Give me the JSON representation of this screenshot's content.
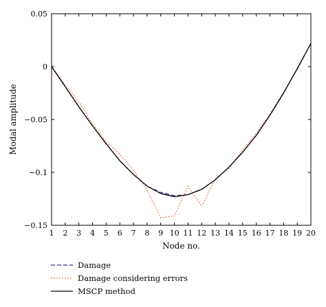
{
  "chart_data": {
    "type": "line",
    "title": "",
    "xlabel": "Node no.",
    "ylabel": "Modal amplitude",
    "xlim": [
      1,
      20
    ],
    "ylim": [
      -0.15,
      0.05
    ],
    "x": [
      1,
      2,
      3,
      4,
      5,
      6,
      7,
      8,
      9,
      10,
      11,
      12,
      13,
      14,
      15,
      16,
      17,
      18,
      19,
      20
    ],
    "x_ticks": [
      1,
      2,
      3,
      4,
      5,
      6,
      7,
      8,
      9,
      10,
      11,
      12,
      13,
      14,
      15,
      16,
      17,
      18,
      19,
      20
    ],
    "y_ticks": [
      {
        "value": 0.05,
        "label": "0.05"
      },
      {
        "value": 0,
        "label": "0"
      },
      {
        "value": -0.05,
        "label": "−0.05"
      },
      {
        "value": -0.1,
        "label": "−0.1"
      },
      {
        "value": -0.15,
        "label": "−0.15"
      }
    ],
    "grid": false,
    "legend_position": "bottom-left",
    "series": [
      {
        "name": "Damage",
        "style": "dashed",
        "color": "#2a2a8a",
        "values": [
          0,
          -0.019,
          -0.038,
          -0.056,
          -0.073,
          -0.089,
          -0.102,
          -0.113,
          -0.119,
          -0.122,
          -0.121,
          -0.116,
          -0.107,
          -0.095,
          -0.081,
          -0.065,
          -0.046,
          -0.025,
          -0.002,
          0.022
        ]
      },
      {
        "name": "Damage considering errors",
        "style": "dotted",
        "color": "#e8501e",
        "values": [
          0,
          -0.017,
          -0.033,
          -0.054,
          -0.071,
          -0.083,
          -0.098,
          -0.117,
          -0.143,
          -0.141,
          -0.113,
          -0.132,
          -0.106,
          -0.096,
          -0.079,
          -0.063,
          -0.045,
          -0.024,
          -0.003,
          0.022
        ]
      },
      {
        "name": "MSCP method",
        "style": "solid",
        "color": "#000000",
        "values": [
          0,
          -0.019,
          -0.038,
          -0.056,
          -0.073,
          -0.089,
          -0.102,
          -0.113,
          -0.12,
          -0.123,
          -0.121,
          -0.116,
          -0.107,
          -0.095,
          -0.081,
          -0.065,
          -0.046,
          -0.025,
          -0.002,
          0.022
        ]
      }
    ]
  }
}
